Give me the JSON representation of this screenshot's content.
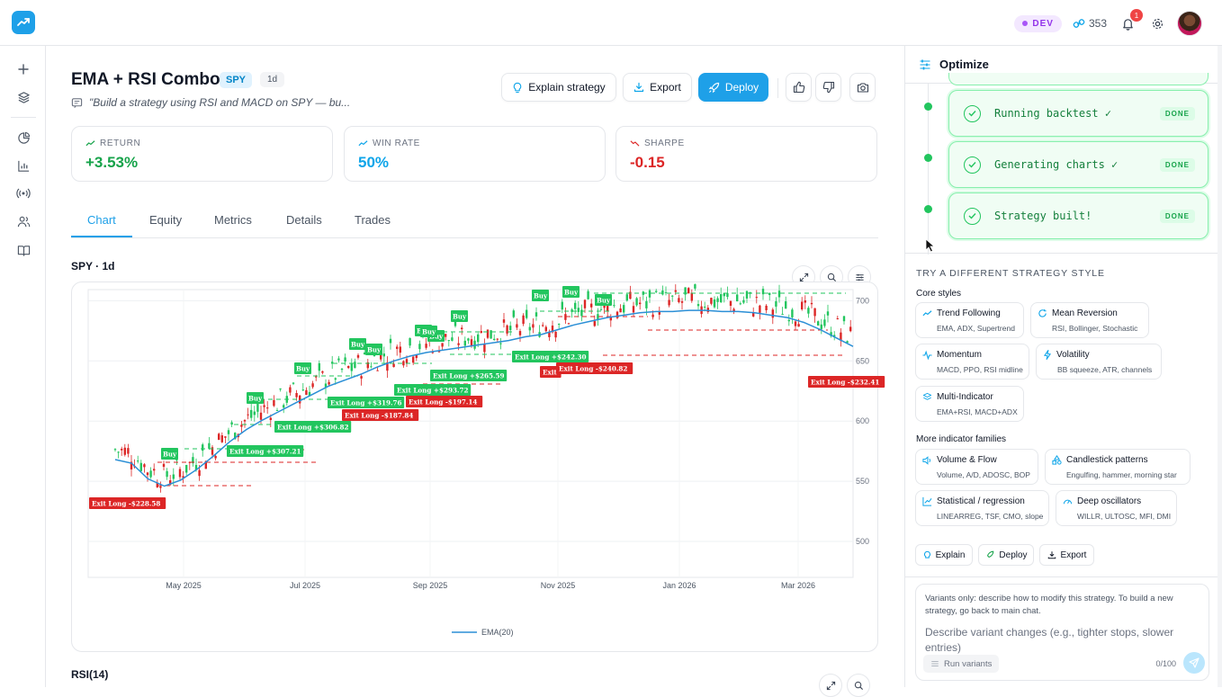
{
  "topbar": {
    "env_badge": "DEV",
    "credits": "353",
    "notifications": "1"
  },
  "header": {
    "title": "EMA + RSI Combo",
    "symbol": "SPY",
    "timeframe": "1d",
    "prompt": "\"Build a strategy using RSI and MACD on SPY — bu...",
    "explain_label": "Explain strategy",
    "export_label": "Export",
    "deploy_label": "Deploy"
  },
  "stats": [
    {
      "label": "RETURN",
      "value": "+3.53%",
      "color": "#16a34a"
    },
    {
      "label": "WIN RATE",
      "value": "50%",
      "color": "#0ea5e9"
    },
    {
      "label": "SHARPE",
      "value": "-0.15",
      "color": "#dc2626"
    }
  ],
  "tabs": [
    "Chart",
    "Equity",
    "Metrics",
    "Details",
    "Trades"
  ],
  "chart": {
    "title": "SPY · 1d",
    "rsi_title": "RSI(14)"
  },
  "chart_data": {
    "type": "line",
    "x_ticks": [
      "May 2025",
      "Jul 2025",
      "Sep 2025",
      "Nov 2025",
      "Jan 2026",
      "Mar 2026"
    ],
    "y_ticks": [
      "700",
      "650",
      "600",
      "550",
      "500"
    ],
    "ylim": [
      470,
      710
    ],
    "legend": "EMA(20)",
    "ema_color": "#2b8fd6",
    "series": [
      {
        "name": "EMA(20)",
        "values": [
          568,
          565,
          552,
          546,
          551,
          560,
          571,
          583,
          593,
          601,
          608,
          615,
          622,
          629,
          634,
          639,
          645,
          650,
          654,
          657,
          659,
          661,
          663,
          665,
          667,
          670,
          672,
          676,
          680,
          683,
          686,
          688,
          690,
          691,
          691,
          692,
          692,
          691,
          691,
          690,
          688,
          686,
          682,
          676,
          669,
          662
        ]
      }
    ],
    "buy_labels": [
      "Buy",
      "Buy",
      "Buy",
      "Buy",
      "Buy",
      "Buy",
      "Buy",
      "Buy",
      "Buy",
      "Buy",
      "Buy",
      "Buy"
    ],
    "exit_labels": [
      {
        "text": "Exit Long -$228.58",
        "win": false
      },
      {
        "text": "Exit Long +$307.21",
        "win": true
      },
      {
        "text": "Exit Long +$306.82",
        "win": true
      },
      {
        "text": "Exit Long +$319.76",
        "win": true
      },
      {
        "text": "Exit Long -$187.84",
        "win": false
      },
      {
        "text": "Exit Long +$293.72",
        "win": true
      },
      {
        "text": "Exit Long -$197.14",
        "win": false
      },
      {
        "text": "Exit Long +$265.59",
        "win": true
      },
      {
        "text": "Exit Long +$242.30",
        "win": true
      },
      {
        "text": "Exit",
        "win": false
      },
      {
        "text": "Exit Long -$240.82",
        "win": false
      },
      {
        "text": "Exit Long -$232.41",
        "win": false
      }
    ]
  },
  "optimize": {
    "title": "Optimize",
    "steps": [
      {
        "label": "Running backtest ✓",
        "status": "DONE"
      },
      {
        "label": "Generating charts ✓",
        "status": "DONE"
      },
      {
        "label": "Strategy built!",
        "status": "DONE"
      }
    ],
    "section_title": "TRY A DIFFERENT STRATEGY STYLE",
    "core_title": "Core styles",
    "core": [
      {
        "name": "Trend Following",
        "desc": "EMA, ADX, Supertrend",
        "icon": "trend-icon"
      },
      {
        "name": "Mean Reversion",
        "desc": "RSI, Bollinger, Stochastic",
        "icon": "refresh-icon"
      },
      {
        "name": "Momentum",
        "desc": "MACD, PPO, RSI midline",
        "icon": "activity-icon"
      },
      {
        "name": "Volatility",
        "desc": "BB squeeze, ATR, channels",
        "icon": "lightning-icon"
      },
      {
        "name": "Multi-Indicator",
        "desc": "EMA+RSI, MACD+ADX",
        "icon": "layers-icon"
      }
    ],
    "more_title": "More indicator families",
    "more": [
      {
        "name": "Volume & Flow",
        "desc": "Volume, A/D, ADOSC, BOP",
        "icon": "speaker-icon"
      },
      {
        "name": "Candlestick patterns",
        "desc": "Engulfing, hammer, morning star",
        "icon": "shapes-icon"
      },
      {
        "name": "Statistical / regression",
        "desc": "LINEARREG, TSF, CMO, slope",
        "icon": "chart-icon"
      },
      {
        "name": "Deep oscillators",
        "desc": "WILLR, ULTOSC, MFI, DMI",
        "icon": "gauge-icon"
      }
    ],
    "actions": {
      "explain": "Explain",
      "deploy": "Deploy",
      "export": "Export"
    },
    "composer": {
      "hint": "Variants only: describe how to modify this strategy. To build a new strategy, go back to main chat.",
      "placeholder": "Describe variant changes (e.g., tighter stops, slower entries)",
      "run_label": "Run variants",
      "counter": "0/100"
    }
  }
}
